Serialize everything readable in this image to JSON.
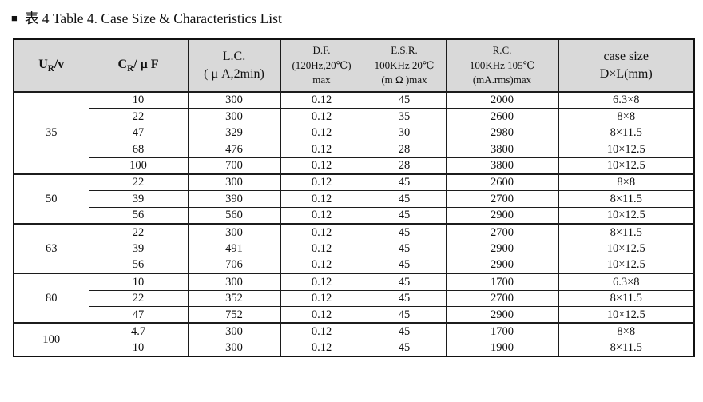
{
  "title": {
    "bullet": "■",
    "text": "表 4 Table 4. Case Size & Characteristics List"
  },
  "table": {
    "headers": {
      "ur": {
        "pre": "U",
        "sub": "R",
        "post": "/v"
      },
      "cr": {
        "pre": "C",
        "sub": "R",
        "post": "/ μ F"
      },
      "lc": {
        "line1": "L.C.",
        "line2": "( μ A,2min)"
      },
      "df": {
        "line1": "D.F.",
        "line2": "(120Hz,20℃)",
        "line3": "max"
      },
      "esr": {
        "line1": "E.S.R.",
        "line2": "100KHz 20℃",
        "line3": "(m Ω )max"
      },
      "rc": {
        "line1": "R.C.",
        "line2": "100KHz 105℃",
        "line3": "(mA.rms)max"
      },
      "case": {
        "line1": "case size",
        "line2": "D×L(mm)"
      }
    },
    "groups": [
      {
        "voltage": "35",
        "rows": [
          [
            "10",
            "300",
            "0.12",
            "45",
            "2000",
            "6.3×8"
          ],
          [
            "22",
            "300",
            "0.12",
            "35",
            "2600",
            "8×8"
          ],
          [
            "47",
            "329",
            "0.12",
            "30",
            "2980",
            "8×11.5"
          ],
          [
            "68",
            "476",
            "0.12",
            "28",
            "3800",
            "10×12.5"
          ],
          [
            "100",
            "700",
            "0.12",
            "28",
            "3800",
            "10×12.5"
          ]
        ]
      },
      {
        "voltage": "50",
        "rows": [
          [
            "22",
            "300",
            "0.12",
            "45",
            "2600",
            "8×8"
          ],
          [
            "39",
            "390",
            "0.12",
            "45",
            "2700",
            "8×11.5"
          ],
          [
            "56",
            "560",
            "0.12",
            "45",
            "2900",
            "10×12.5"
          ]
        ]
      },
      {
        "voltage": "63",
        "rows": [
          [
            "22",
            "300",
            "0.12",
            "45",
            "2700",
            "8×11.5"
          ],
          [
            "39",
            "491",
            "0.12",
            "45",
            "2900",
            "10×12.5"
          ],
          [
            "56",
            "706",
            "0.12",
            "45",
            "2900",
            "10×12.5"
          ]
        ]
      },
      {
        "voltage": "80",
        "rows": [
          [
            "10",
            "300",
            "0.12",
            "45",
            "1700",
            "6.3×8"
          ],
          [
            "22",
            "352",
            "0.12",
            "45",
            "2700",
            "8×11.5"
          ],
          [
            "47",
            "752",
            "0.12",
            "45",
            "2900",
            "10×12.5"
          ]
        ]
      },
      {
        "voltage": "100",
        "rows": [
          [
            "4.7",
            "300",
            "0.12",
            "45",
            "1700",
            "8×8"
          ],
          [
            "10",
            "300",
            "0.12",
            "45",
            "1900",
            "8×11.5"
          ]
        ]
      }
    ],
    "colors": {
      "header_bg": "#d9d9d9",
      "border": "#1c1c1c",
      "text": "#111111"
    }
  }
}
